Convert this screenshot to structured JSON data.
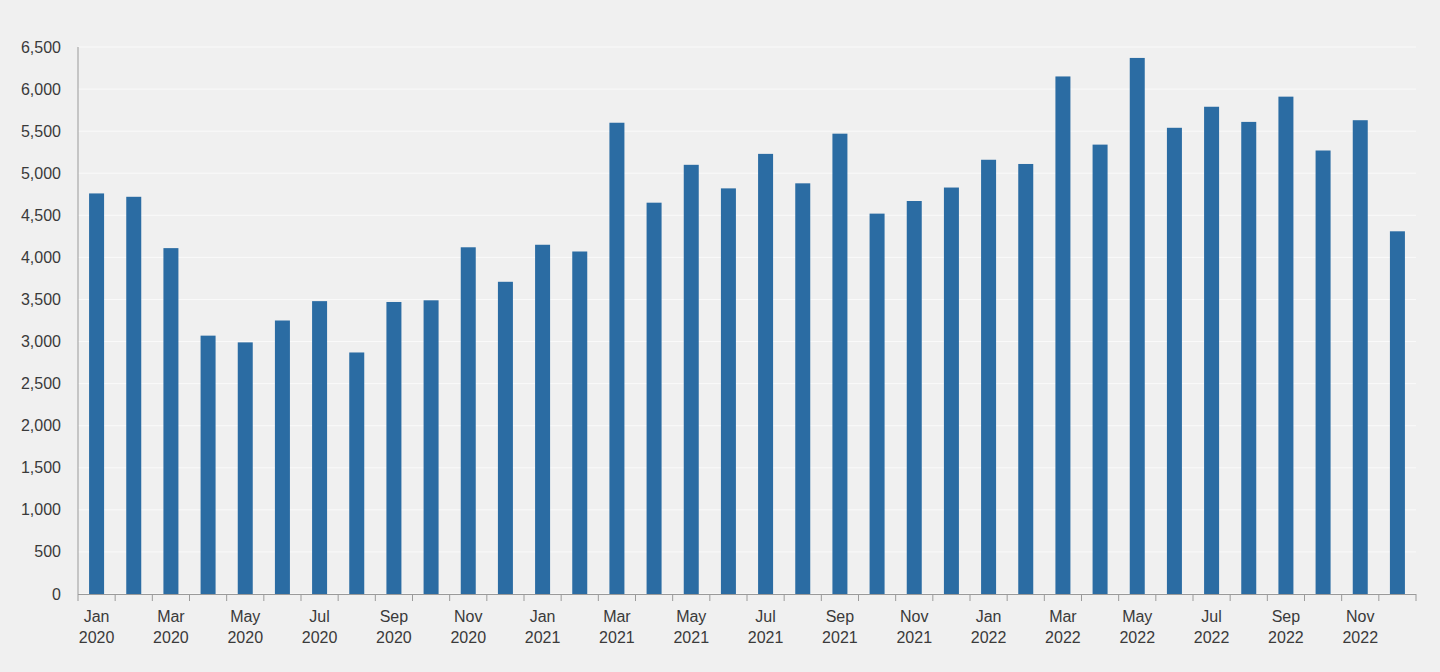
{
  "chart_data": {
    "type": "bar",
    "categories": [
      "Jan 2020",
      null,
      "Mar 2020",
      null,
      "May 2020",
      null,
      "Jul 2020",
      null,
      "Sep 2020",
      null,
      "Nov 2020",
      null,
      "Jan 2021",
      null,
      "Mar 2021",
      null,
      "May 2021",
      null,
      "Jul 2021",
      null,
      "Sep 2021",
      null,
      "Nov 2021",
      null,
      "Jan 2022",
      null,
      "Mar 2022",
      null,
      "May 2022",
      null,
      "Jul 2022",
      null,
      "Sep 2022",
      null,
      "Nov 2022",
      null
    ],
    "values": [
      4760,
      4720,
      4110,
      3070,
      2990,
      3250,
      3480,
      2870,
      3470,
      3490,
      4120,
      3710,
      4150,
      4070,
      5600,
      4650,
      5100,
      4820,
      5230,
      4880,
      5470,
      4520,
      4670,
      4830,
      5160,
      5110,
      6150,
      5340,
      6370,
      5540,
      5790,
      5610,
      5910,
      5270,
      5630,
      4310
    ],
    "color": "#2b6ca3",
    "ylim": [
      0,
      6500
    ],
    "yticks": [
      0,
      500,
      {
        "value": 1000,
        "label": "1,000"
      },
      {
        "value": 1500,
        "label": "1,500"
      },
      {
        "value": 2000,
        "label": "2,000"
      },
      {
        "value": 2500,
        "label": "2,500"
      },
      {
        "value": 3000,
        "label": "3,000"
      },
      {
        "value": 3500,
        "label": "3,500"
      },
      {
        "value": 4000,
        "label": "4,000"
      },
      {
        "value": 4500,
        "label": "4,500"
      },
      {
        "value": 5000,
        "label": "5,000"
      },
      {
        "value": 5500,
        "label": "5,500"
      },
      {
        "value": 6000,
        "label": "6,000"
      },
      {
        "value": 6500,
        "label": "6,500"
      }
    ],
    "grid": true
  }
}
